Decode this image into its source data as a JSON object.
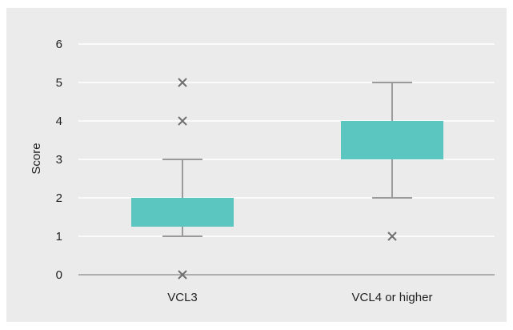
{
  "chart_data": {
    "type": "box",
    "ylabel": "Score",
    "ylim": [
      0,
      6
    ],
    "yticks": [
      "0",
      "1",
      "2",
      "3",
      "4",
      "5",
      "6"
    ],
    "categories": [
      "VCL3",
      "VCL4 or higher"
    ],
    "boxes": [
      {
        "category": "VCL3",
        "whisker_low": 1,
        "q1": 1.25,
        "q3": 2,
        "whisker_high": 3,
        "outliers": [
          0,
          4,
          5
        ]
      },
      {
        "category": "VCL4 or higher",
        "whisker_low": 2,
        "q1": 3,
        "q3": 4,
        "whisker_high": 5,
        "outliers": [
          1
        ]
      }
    ],
    "grid": true,
    "colors": {
      "box": "#5bc5bf",
      "whisker": "#9a9a9a",
      "grid": "#ffffff",
      "outlier": "#707070",
      "axis": "#9a9a9a"
    }
  }
}
